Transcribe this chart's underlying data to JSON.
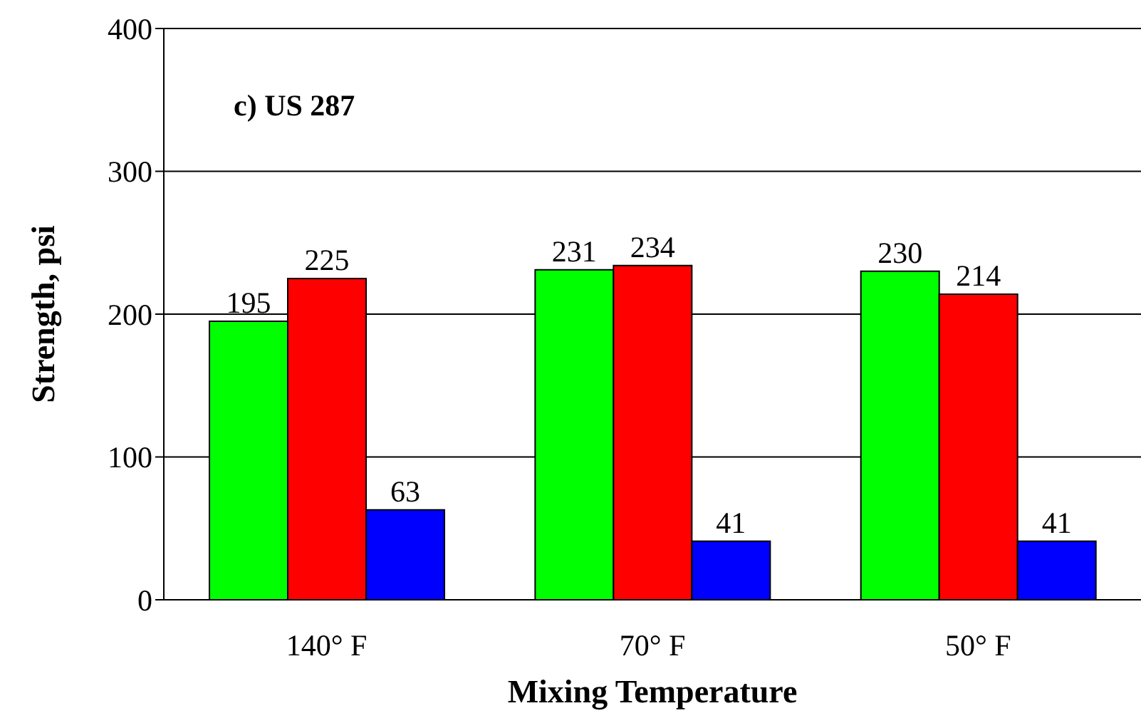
{
  "chart_data": {
    "type": "bar",
    "xlabel": "Mixing Temperature",
    "ylabel": "Strength, psi",
    "annotations": [
      "c) US 287"
    ],
    "categories": [
      "140° F",
      "70° F",
      "50° F"
    ],
    "series": [
      {
        "color": "#00ff00",
        "values": [
          195,
          231,
          230
        ]
      },
      {
        "color": "#ff0000",
        "values": [
          225,
          234,
          214
        ]
      },
      {
        "color": "#0000ff",
        "values": [
          63,
          41,
          41
        ]
      }
    ],
    "ylim": [
      0,
      400
    ],
    "yticks": [
      0,
      100,
      200,
      300,
      400
    ],
    "grid": "y",
    "data_labels": true,
    "legend": false
  }
}
